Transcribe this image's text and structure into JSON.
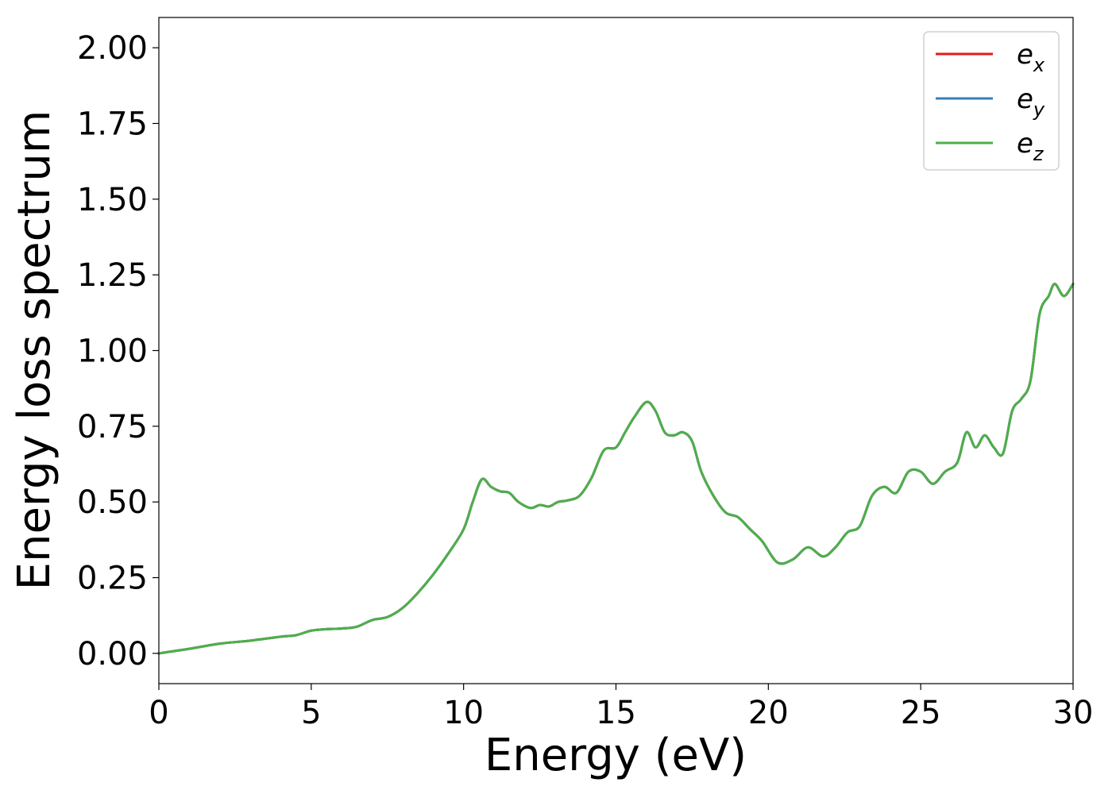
{
  "chart_data": {
    "type": "line",
    "xlabel": "Energy (eV)",
    "ylabel": "Energy loss spectrum",
    "xlim": [
      0,
      30
    ],
    "ylim": [
      -0.1,
      2.1
    ],
    "xticks": [
      0,
      5,
      10,
      15,
      20,
      25,
      30
    ],
    "yticks": [
      0.0,
      0.25,
      0.5,
      0.75,
      1.0,
      1.25,
      1.5,
      1.75,
      2.0
    ],
    "ytick_labels": [
      "0.00",
      "0.25",
      "0.50",
      "0.75",
      "1.00",
      "1.25",
      "1.50",
      "1.75",
      "2.00"
    ],
    "grid": false,
    "legend_position": "top-right",
    "x": [
      0,
      1,
      2,
      3,
      4,
      4.5,
      5,
      5.5,
      6,
      6.5,
      7,
      7.5,
      8,
      8.5,
      9,
      9.5,
      10,
      10.3,
      10.6,
      10.9,
      11.2,
      11.5,
      11.8,
      12.2,
      12.5,
      12.8,
      13.1,
      13.4,
      13.8,
      14.2,
      14.6,
      15.0,
      15.3,
      15.6,
      16.0,
      16.3,
      16.6,
      16.9,
      17.2,
      17.5,
      17.8,
      18.2,
      18.6,
      19.0,
      19.4,
      19.8,
      20.3,
      20.8,
      21.3,
      21.8,
      22.2,
      22.6,
      23.0,
      23.4,
      23.8,
      24.2,
      24.6,
      25.0,
      25.4,
      25.8,
      26.2,
      26.5,
      26.8,
      27.1,
      27.4,
      27.7,
      28.0,
      28.3,
      28.6,
      28.9,
      29.2,
      29.4,
      29.7,
      30.0
    ],
    "series": [
      {
        "name": "e_x",
        "label_base": "e",
        "label_sub": "x",
        "color": "#e41a1c",
        "y": [
          0,
          0.015,
          0.032,
          0.042,
          0.055,
          0.06,
          0.075,
          0.08,
          0.082,
          0.088,
          0.11,
          0.12,
          0.15,
          0.2,
          0.26,
          0.33,
          0.41,
          0.5,
          0.575,
          0.55,
          0.535,
          0.53,
          0.5,
          0.48,
          0.49,
          0.485,
          0.5,
          0.505,
          0.52,
          0.58,
          0.67,
          0.68,
          0.73,
          0.78,
          0.83,
          0.8,
          0.73,
          0.72,
          0.73,
          0.7,
          0.6,
          0.52,
          0.465,
          0.45,
          0.41,
          0.37,
          0.3,
          0.31,
          0.35,
          0.32,
          0.35,
          0.4,
          0.42,
          0.52,
          0.55,
          0.53,
          0.6,
          0.6,
          0.56,
          0.6,
          0.63,
          0.73,
          0.68,
          0.72,
          0.68,
          0.66,
          0.8,
          0.84,
          0.9,
          1.12,
          1.18,
          1.22,
          1.18,
          1.22
        ]
      },
      {
        "name": "e_y",
        "label_base": "e",
        "label_sub": "y",
        "color": "#377eb8",
        "y": [
          0,
          0.015,
          0.032,
          0.042,
          0.055,
          0.06,
          0.075,
          0.08,
          0.082,
          0.088,
          0.11,
          0.12,
          0.15,
          0.2,
          0.26,
          0.33,
          0.41,
          0.5,
          0.575,
          0.55,
          0.535,
          0.53,
          0.5,
          0.48,
          0.49,
          0.485,
          0.5,
          0.505,
          0.52,
          0.58,
          0.67,
          0.68,
          0.73,
          0.78,
          0.83,
          0.8,
          0.73,
          0.72,
          0.73,
          0.7,
          0.6,
          0.52,
          0.465,
          0.45,
          0.41,
          0.37,
          0.3,
          0.31,
          0.35,
          0.32,
          0.35,
          0.4,
          0.42,
          0.52,
          0.55,
          0.53,
          0.6,
          0.6,
          0.56,
          0.6,
          0.63,
          0.73,
          0.68,
          0.72,
          0.68,
          0.66,
          0.8,
          0.84,
          0.9,
          1.12,
          1.18,
          1.22,
          1.18,
          1.22
        ]
      },
      {
        "name": "e_z",
        "label_base": "e",
        "label_sub": "z",
        "color": "#4daf4a",
        "y": [
          0,
          0.015,
          0.032,
          0.042,
          0.055,
          0.06,
          0.075,
          0.08,
          0.082,
          0.088,
          0.11,
          0.12,
          0.15,
          0.2,
          0.26,
          0.33,
          0.41,
          0.5,
          0.575,
          0.55,
          0.535,
          0.53,
          0.5,
          0.48,
          0.49,
          0.485,
          0.5,
          0.505,
          0.52,
          0.58,
          0.67,
          0.68,
          0.73,
          0.78,
          0.83,
          0.8,
          0.73,
          0.72,
          0.73,
          0.7,
          0.6,
          0.52,
          0.465,
          0.45,
          0.41,
          0.37,
          0.3,
          0.31,
          0.35,
          0.32,
          0.35,
          0.4,
          0.42,
          0.52,
          0.55,
          0.53,
          0.6,
          0.6,
          0.56,
          0.6,
          0.63,
          0.73,
          0.68,
          0.72,
          0.68,
          0.66,
          0.8,
          0.84,
          0.9,
          1.12,
          1.18,
          1.22,
          1.18,
          1.22
        ]
      }
    ]
  }
}
